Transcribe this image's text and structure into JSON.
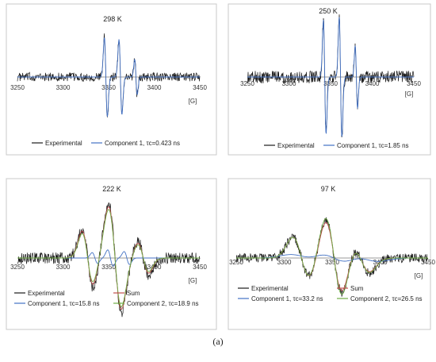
{
  "figure_caption": "(a)",
  "chart_data": [
    {
      "type": "line",
      "title": "298 K",
      "x_unit_label": "[G]",
      "x_ticks": [
        "3250",
        "3300",
        "3350",
        "3400",
        "3450"
      ],
      "xlim": [
        3250,
        3450
      ],
      "legend_position": "bottom",
      "series": [
        {
          "name": "Experimental",
          "color": "#1a1a1a",
          "kind": "exp",
          "lines": [
            {
              "center": 3347,
              "width": 1.6,
              "amp": 1.0
            },
            {
              "center": 3363,
              "width": 1.6,
              "amp": 0.95
            },
            {
              "center": 3380,
              "width": 1.4,
              "amp": 0.45
            }
          ]
        },
        {
          "name": "Component 1, τc=0.423 ns",
          "color": "#4472c4",
          "kind": "fit",
          "lines": [
            {
              "center": 3347,
              "width": 1.6,
              "amp": 1.0
            },
            {
              "center": 3363,
              "width": 1.6,
              "amp": 0.95
            },
            {
              "center": 3380,
              "width": 1.4,
              "amp": 0.45
            }
          ]
        }
      ]
    },
    {
      "type": "line",
      "title": "250 K",
      "x_unit_label": "[G]",
      "x_ticks": [
        "3250",
        "3300",
        "3350",
        "3400",
        "3450"
      ],
      "xlim": [
        3250,
        3450
      ],
      "legend_position": "bottom",
      "series": [
        {
          "name": "Experimental",
          "color": "#1a1a1a",
          "kind": "exp",
          "lines": [
            {
              "center": 3343,
              "width": 1.6,
              "amp": 1.0
            },
            {
              "center": 3362,
              "width": 1.6,
              "amp": 1.05
            },
            {
              "center": 3381,
              "width": 1.4,
              "amp": 0.55
            }
          ]
        },
        {
          "name": "Component 1, τc=1.85 ns",
          "color": "#4472c4",
          "kind": "fit",
          "lines": [
            {
              "center": 3343,
              "width": 1.6,
              "amp": 1.0
            },
            {
              "center": 3362,
              "width": 1.6,
              "amp": 1.05
            },
            {
              "center": 3381,
              "width": 1.4,
              "amp": 0.55
            }
          ]
        }
      ]
    },
    {
      "type": "line",
      "title": "222 K",
      "x_unit_label": "[G]",
      "x_ticks": [
        "3250",
        "3300",
        "3350",
        "3400",
        "3450"
      ],
      "xlim": [
        3250,
        3450
      ],
      "legend_position": "bottom",
      "series": [
        {
          "name": "Experimental",
          "color": "#1a1a1a",
          "kind": "exp",
          "lines": [
            {
              "center": 3327,
              "width": 6,
              "amp": 0.55
            },
            {
              "center": 3357,
              "width": 7,
              "amp": 1.0
            },
            {
              "center": 3388,
              "width": 6,
              "amp": 0.3
            }
          ]
        },
        {
          "name": "Sum",
          "color": "#c0504d",
          "kind": "fit",
          "lines": [
            {
              "center": 3327,
              "width": 6,
              "amp": 0.5
            },
            {
              "center": 3357,
              "width": 7,
              "amp": 0.95
            },
            {
              "center": 3388,
              "width": 6,
              "amp": 0.28
            }
          ]
        },
        {
          "name": "Component 1, τc=15.8 ns",
          "color": "#4472c4",
          "kind": "fit",
          "lines": [
            {
              "center": 3335,
              "width": 3,
              "amp": 0.1
            },
            {
              "center": 3352,
              "width": 3,
              "amp": 0.15
            },
            {
              "center": 3370,
              "width": 3,
              "amp": 0.12
            }
          ]
        },
        {
          "name": "Component 2, τc=18.9 ns",
          "color": "#70ad47",
          "kind": "fit",
          "lines": [
            {
              "center": 3327,
              "width": 6,
              "amp": 0.45
            },
            {
              "center": 3357,
              "width": 7,
              "amp": 0.9
            },
            {
              "center": 3388,
              "width": 6,
              "amp": 0.25
            }
          ]
        }
      ]
    },
    {
      "type": "line",
      "title": "97 K",
      "x_unit_label": "[G]",
      "x_ticks": [
        "3250",
        "3300",
        "3350",
        "3400",
        "3450"
      ],
      "xlim": [
        3250,
        3450
      ],
      "legend_position": "bottom",
      "series": [
        {
          "name": "Experimental",
          "color": "#1a1a1a",
          "kind": "exp",
          "lines": [
            {
              "center": 3318,
              "width": 9,
              "amp": 0.5
            },
            {
              "center": 3352,
              "width": 9,
              "amp": 0.95
            },
            {
              "center": 3380,
              "width": 9,
              "amp": 0.35
            }
          ]
        },
        {
          "name": "Sum",
          "color": "#c0504d",
          "kind": "fit",
          "lines": [
            {
              "center": 3318,
              "width": 9,
              "amp": 0.5
            },
            {
              "center": 3352,
              "width": 9,
              "amp": 0.9
            },
            {
              "center": 3380,
              "width": 9,
              "amp": 0.33
            }
          ]
        },
        {
          "name": "Component 1, τc=33.2 ns",
          "color": "#4472c4",
          "kind": "fit",
          "lines": [
            {
              "center": 3320,
              "width": 14,
              "amp": 0.08
            },
            {
              "center": 3352,
              "width": 14,
              "amp": 0.14
            },
            {
              "center": 3385,
              "width": 14,
              "amp": 0.08
            }
          ]
        },
        {
          "name": "Component 2, τc=26.5 ns",
          "color": "#70ad47",
          "kind": "fit",
          "lines": [
            {
              "center": 3318,
              "width": 9,
              "amp": 0.5
            },
            {
              "center": 3352,
              "width": 9,
              "amp": 1.0
            },
            {
              "center": 3380,
              "width": 9,
              "amp": 0.35
            }
          ]
        }
      ]
    }
  ]
}
